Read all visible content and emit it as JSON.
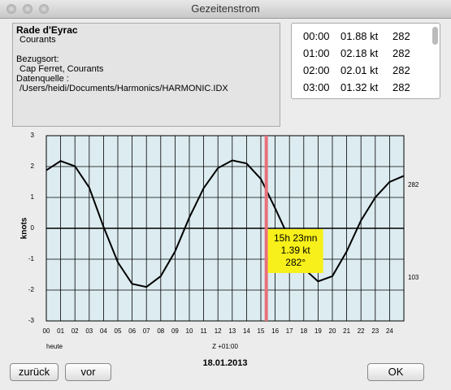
{
  "window": {
    "title": "Gezeitenstrom"
  },
  "info": {
    "station": "Rade d'Eyrac",
    "kind": "Courants",
    "ref_label": "Bezugsort:",
    "ref_value": "Cap Ferret, Courants",
    "source_label": "Datenquelle :",
    "source_value": "/Users/heidi/Documents/Harmonics/HARMONIC.IDX"
  },
  "list": {
    "rows": [
      [
        "00:00",
        "01.88 kt",
        "282"
      ],
      [
        "01:00",
        "02.18 kt",
        "282"
      ],
      [
        "02:00",
        "02.01 kt",
        "282"
      ],
      [
        "03:00",
        "01.32 kt",
        "282"
      ]
    ]
  },
  "chart_data": {
    "type": "line",
    "y_label": "knots",
    "color": "#000000",
    "x": [
      0,
      1,
      2,
      3,
      4,
      5,
      6,
      7,
      8,
      9,
      10,
      11,
      12,
      13,
      14,
      15,
      16,
      17,
      18,
      19,
      20,
      21,
      22,
      23,
      24,
      25
    ],
    "values": [
      1.88,
      2.18,
      2.01,
      1.32,
      0.05,
      -1.1,
      -1.8,
      -1.9,
      -1.55,
      -0.75,
      0.35,
      1.3,
      1.95,
      2.2,
      2.1,
      1.6,
      0.65,
      -0.35,
      -1.3,
      -1.72,
      -1.55,
      -0.75,
      0.25,
      1.0,
      1.5,
      1.7
    ],
    "xlim": [
      0,
      25
    ],
    "ylim": [
      -3,
      3
    ],
    "xticks": [
      {
        "value": 0,
        "label": "00"
      },
      {
        "value": 1,
        "label": "01"
      },
      {
        "value": 2,
        "label": "02"
      },
      {
        "value": 3,
        "label": "03"
      },
      {
        "value": 4,
        "label": "04"
      },
      {
        "value": 5,
        "label": "05"
      },
      {
        "value": 6,
        "label": "06"
      },
      {
        "value": 7,
        "label": "07"
      },
      {
        "value": 8,
        "label": "08"
      },
      {
        "value": 9,
        "label": "09"
      },
      10,
      11,
      12,
      13,
      14,
      15,
      16,
      17,
      18,
      19,
      20,
      21,
      22,
      23,
      24
    ],
    "yticks": [
      3,
      2,
      1,
      0,
      -1,
      -2,
      -3
    ],
    "grid": true,
    "cursor": {
      "x": 15.38,
      "color": "#e8707a",
      "time": "15h 23mn",
      "speed": "1.39 kt",
      "direction": "282°"
    },
    "direction_labels": [
      {
        "value": 1.4,
        "label": "282"
      },
      {
        "value": -1.6,
        "label": "103"
      }
    ],
    "day_label": "heute",
    "zone_label": "Z +01:00",
    "date": "18.01.2013"
  },
  "buttons": {
    "back": "zurück",
    "forward": "vor",
    "ok": "OK"
  }
}
